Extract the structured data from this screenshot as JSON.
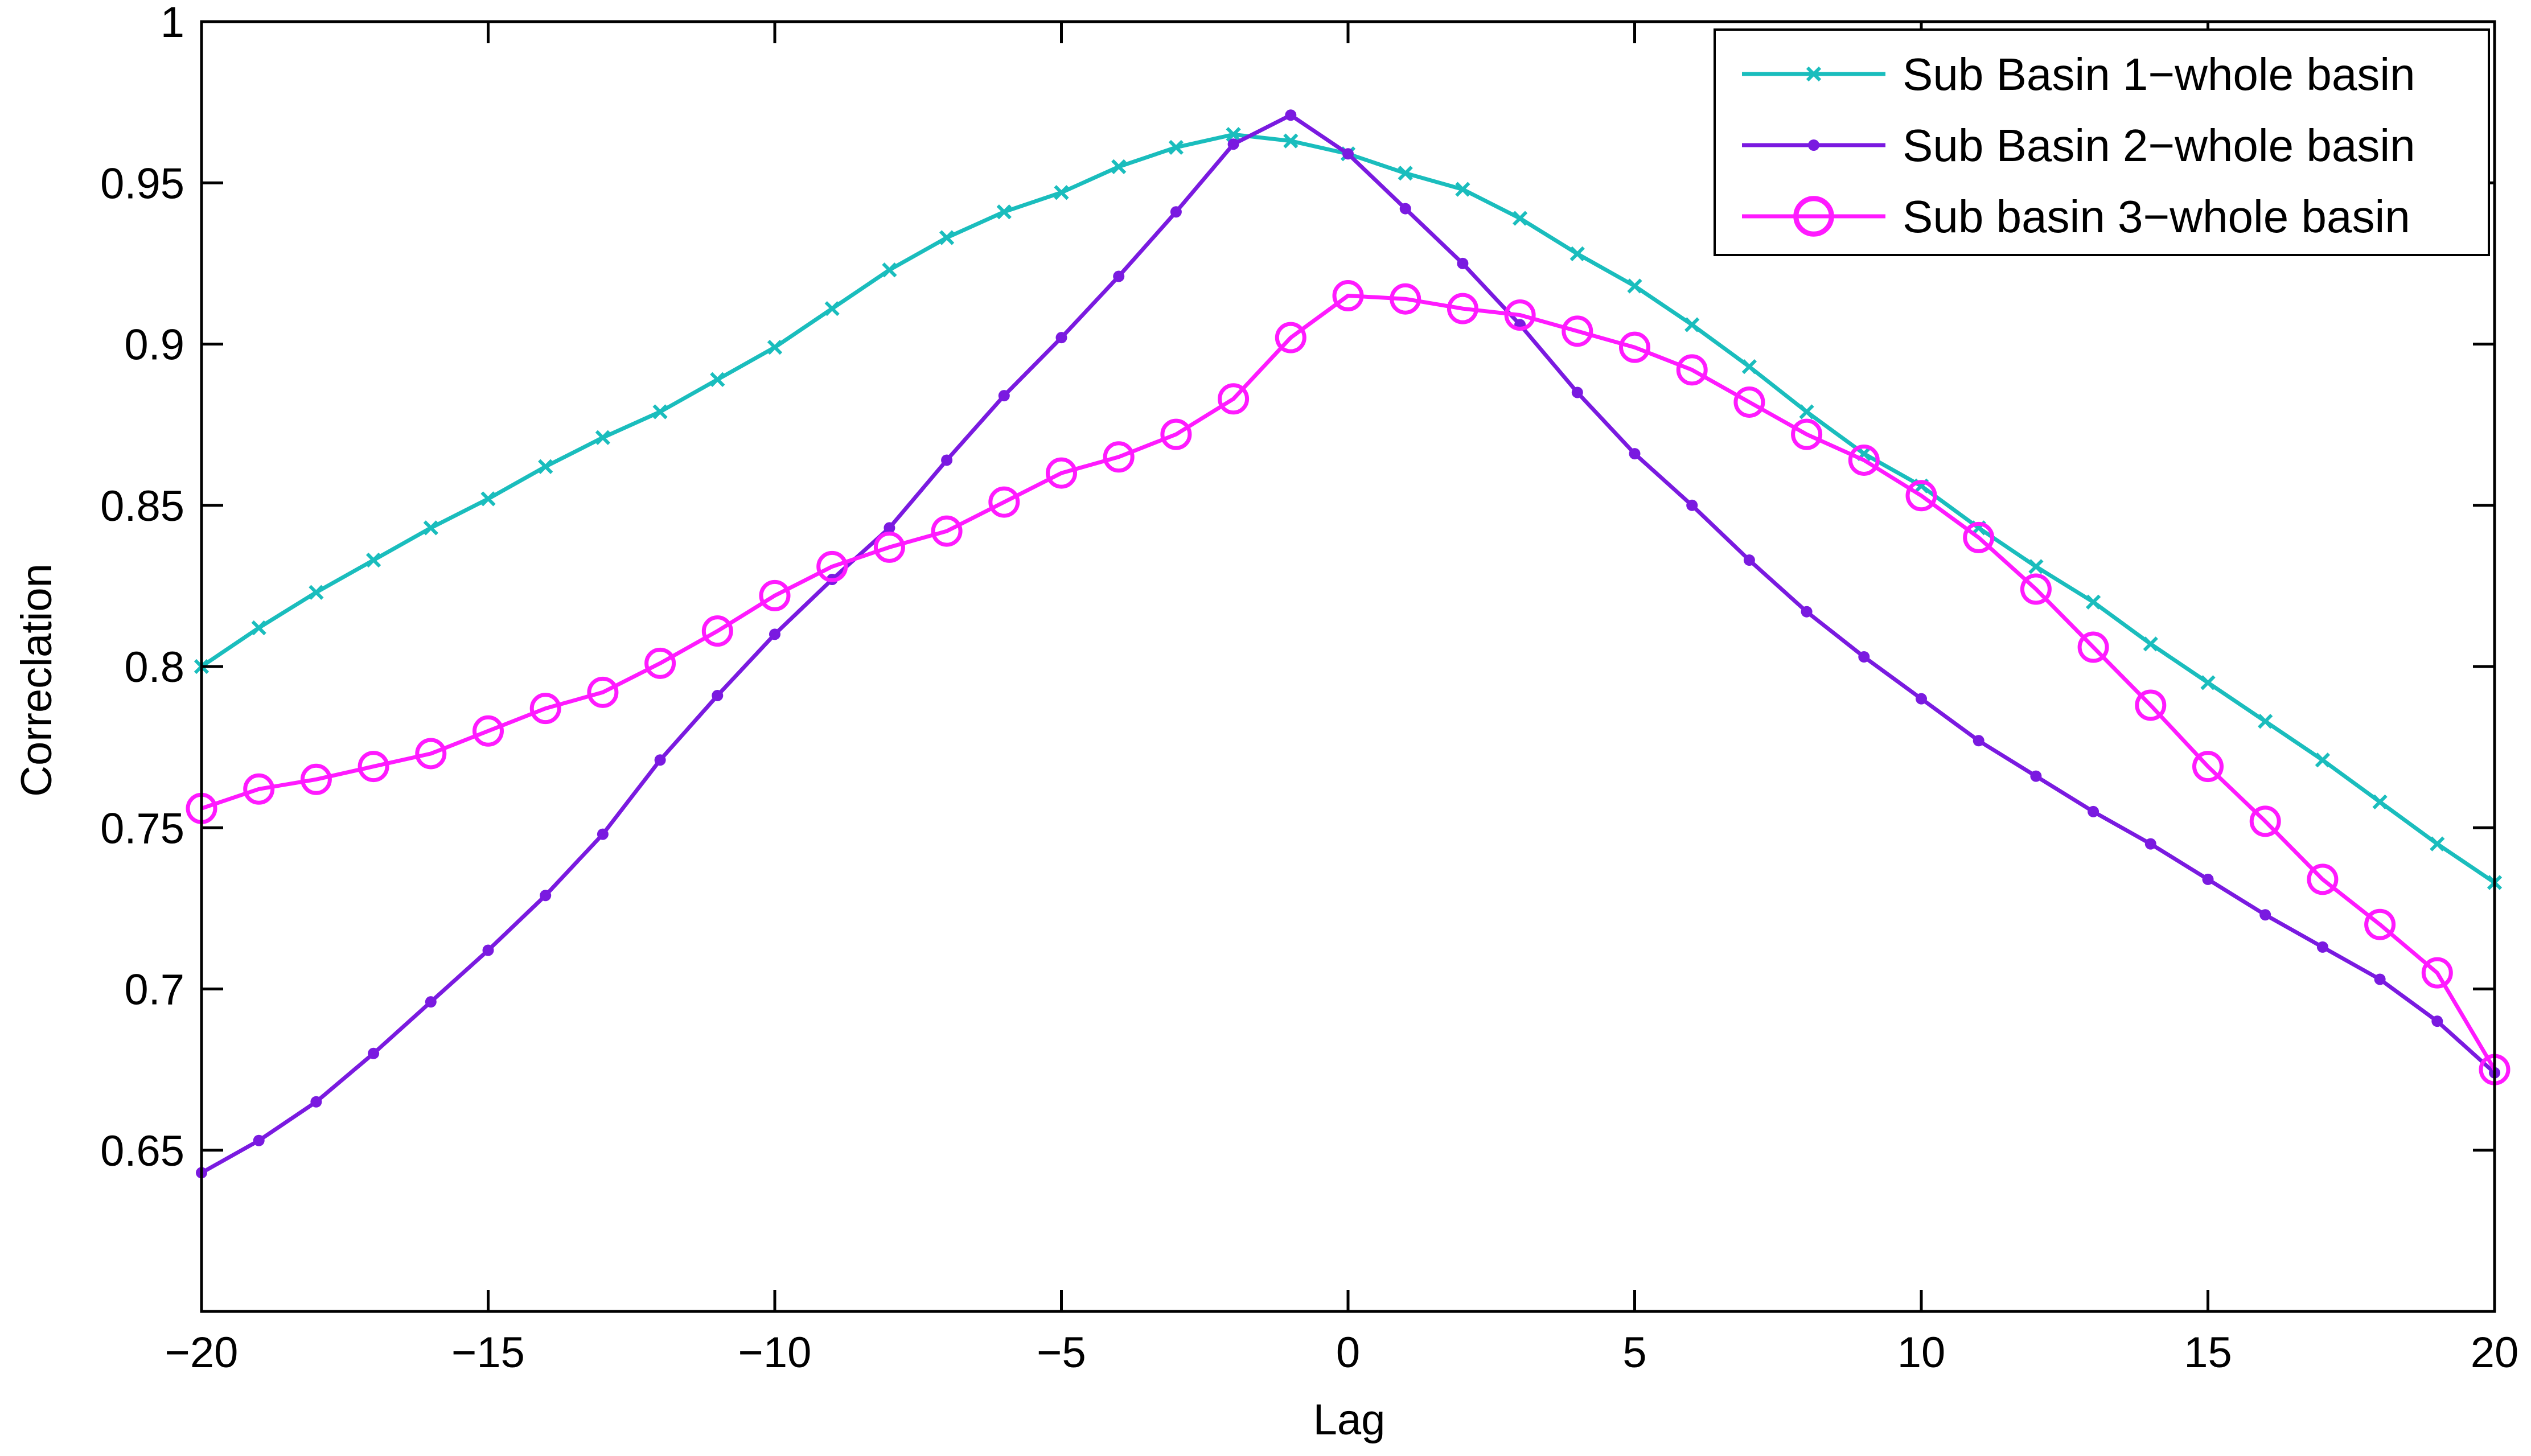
{
  "chart_data": {
    "type": "line",
    "xlabel": "Lag",
    "ylabel": "Correclation",
    "xlim": [
      -20,
      20
    ],
    "ylim": [
      0.6,
      1
    ],
    "x_ticks": [
      -20,
      -15,
      -10,
      -5,
      0,
      5,
      10,
      15,
      20
    ],
    "x_tick_labels": [
      "−20",
      "−15",
      "−10",
      "−5",
      "0",
      "5",
      "10",
      "15",
      "20"
    ],
    "y_ticks": [
      0.65,
      0.7,
      0.75,
      0.8,
      0.85,
      0.9,
      0.95,
      1
    ],
    "y_tick_labels": [
      "0.65",
      "0.7",
      "0.75",
      "0.8",
      "0.85",
      "0.9",
      "0.95",
      "1"
    ],
    "grid": false,
    "legend_position": "top-right",
    "x": [
      -20,
      -19,
      -18,
      -17,
      -16,
      -15,
      -14,
      -13,
      -12,
      -11,
      -10,
      -9,
      -8,
      -7,
      -6,
      -5,
      -4,
      -3,
      -2,
      -1,
      0,
      1,
      2,
      3,
      4,
      5,
      6,
      7,
      8,
      9,
      10,
      11,
      12,
      13,
      14,
      15,
      16,
      17,
      18,
      19,
      20
    ],
    "series": [
      {
        "name": "Sub Basin 1−whole basin",
        "color": "#1ABDBD",
        "marker": "x",
        "values": [
          0.8,
          0.812,
          0.823,
          0.833,
          0.843,
          0.852,
          0.862,
          0.871,
          0.879,
          0.889,
          0.899,
          0.911,
          0.923,
          0.933,
          0.941,
          0.947,
          0.955,
          0.961,
          0.965,
          0.963,
          0.959,
          0.953,
          0.948,
          0.939,
          0.928,
          0.918,
          0.906,
          0.893,
          0.879,
          0.866,
          0.856,
          0.843,
          0.831,
          0.82,
          0.807,
          0.795,
          0.783,
          0.771,
          0.758,
          0.745,
          0.733
        ]
      },
      {
        "name": "Sub Basin 2−whole basin",
        "color": "#7A1AE0",
        "marker": "dot",
        "values": [
          0.643,
          0.653,
          0.665,
          0.68,
          0.696,
          0.712,
          0.729,
          0.748,
          0.771,
          0.791,
          0.81,
          0.827,
          0.843,
          0.864,
          0.884,
          0.902,
          0.921,
          0.941,
          0.962,
          0.971,
          0.959,
          0.942,
          0.925,
          0.906,
          0.885,
          0.866,
          0.85,
          0.833,
          0.817,
          0.803,
          0.79,
          0.777,
          0.766,
          0.755,
          0.745,
          0.734,
          0.723,
          0.713,
          0.703,
          0.69,
          0.674
        ]
      },
      {
        "name": "Sub basin 3−whole basin",
        "color": "#FF1AFF",
        "marker": "circle",
        "values": [
          0.756,
          0.762,
          0.765,
          0.769,
          0.773,
          0.78,
          0.787,
          0.792,
          0.801,
          0.811,
          0.822,
          0.831,
          0.837,
          0.842,
          0.851,
          0.86,
          0.865,
          0.872,
          0.883,
          0.902,
          0.915,
          0.914,
          0.911,
          0.909,
          0.904,
          0.899,
          0.892,
          0.882,
          0.872,
          0.864,
          0.853,
          0.84,
          0.824,
          0.806,
          0.788,
          0.769,
          0.752,
          0.734,
          0.72,
          0.705,
          0.675
        ]
      }
    ]
  }
}
